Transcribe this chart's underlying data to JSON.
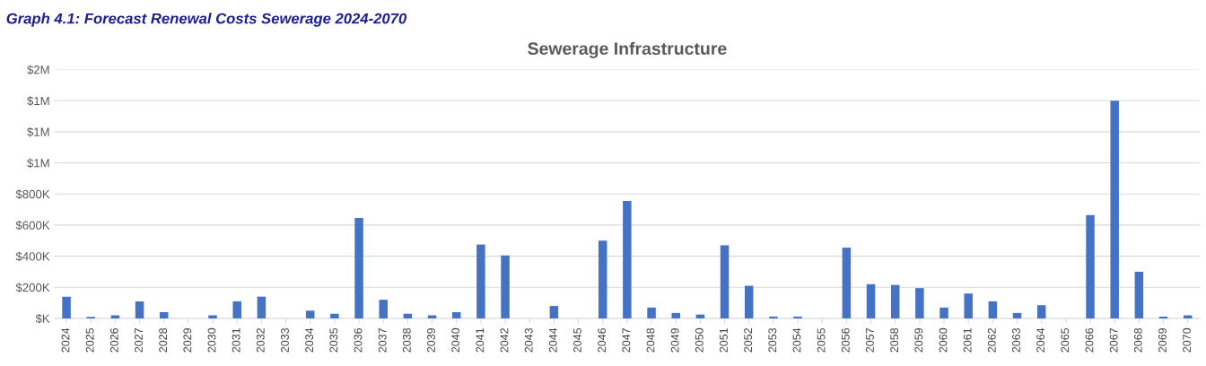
{
  "chart_data": {
    "type": "bar",
    "title": "Sewerage Infrastructure",
    "annotations": [
      "Graph 4.1: Forecast Renewal Costs Sewerage 2024-2070"
    ],
    "categories": [
      "2024",
      "2025",
      "2026",
      "2027",
      "2028",
      "2029",
      "2030",
      "2031",
      "2032",
      "2033",
      "2034",
      "2035",
      "2036",
      "2037",
      "2038",
      "2039",
      "2040",
      "2041",
      "2042",
      "2043",
      "2044",
      "2045",
      "2046",
      "2047",
      "2048",
      "2049",
      "2050",
      "2051",
      "2052",
      "2053",
      "2054",
      "2055",
      "2056",
      "2057",
      "2058",
      "2059",
      "2060",
      "2061",
      "2062",
      "2063",
      "2064",
      "2065",
      "2066",
      "2067",
      "2068",
      "2069",
      "2070"
    ],
    "values": [
      140000,
      10000,
      20000,
      110000,
      40000,
      0,
      20000,
      110000,
      140000,
      0,
      50000,
      30000,
      645000,
      120000,
      30000,
      20000,
      40000,
      475000,
      405000,
      0,
      80000,
      0,
      500000,
      755000,
      70000,
      35000,
      25000,
      470000,
      210000,
      12000,
      12000,
      0,
      455000,
      220000,
      215000,
      195000,
      70000,
      160000,
      110000,
      35000,
      85000,
      0,
      665000,
      1400000,
      300000,
      12000,
      20000
    ],
    "color": "#4472c4",
    "ylim": [
      0,
      1600000
    ],
    "yticks": [
      {
        "value": 0,
        "label": "$K"
      },
      {
        "value": 200000,
        "label": "$200K"
      },
      {
        "value": 400000,
        "label": "$400K"
      },
      {
        "value": 600000,
        "label": "$600K"
      },
      {
        "value": 800000,
        "label": "$800K"
      },
      {
        "value": 1000000,
        "label": "$1M"
      },
      {
        "value": 1200000,
        "label": "$1M"
      },
      {
        "value": 1400000,
        "label": "$1M"
      },
      {
        "value": 1600000,
        "label": "$2M"
      }
    ],
    "grid": "y"
  }
}
